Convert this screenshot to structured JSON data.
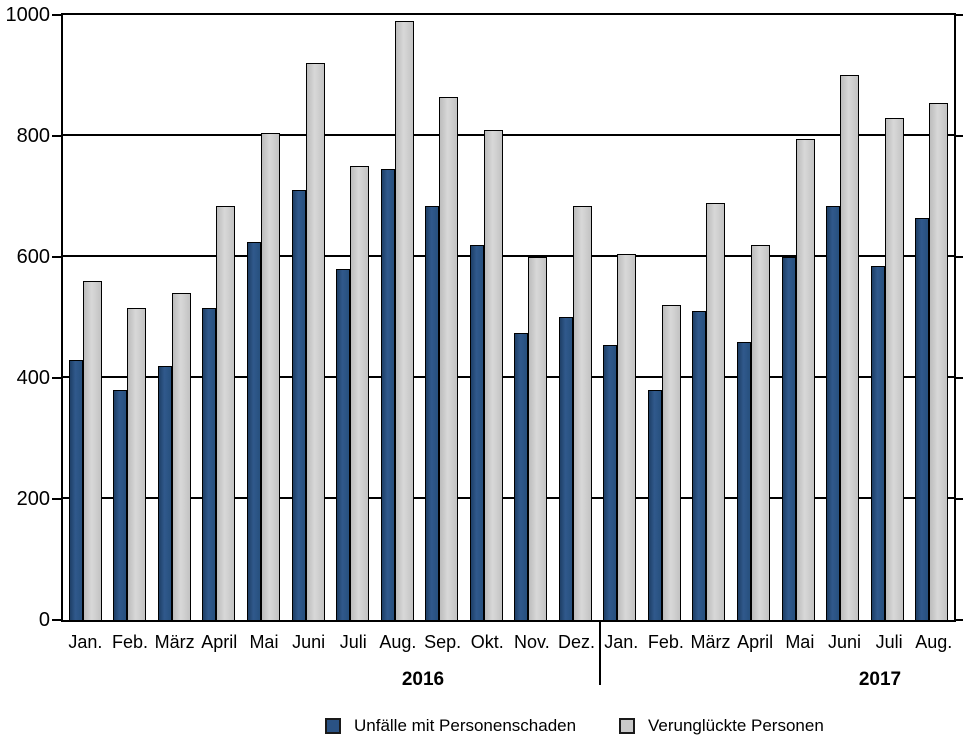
{
  "chart_data": {
    "type": "bar",
    "title": "",
    "xlabel": "",
    "ylabel": "",
    "ylim": [
      0,
      1000
    ],
    "yticks": [
      0,
      200,
      400,
      600,
      800,
      1000
    ],
    "grid": "horizontal",
    "legend_position": "bottom",
    "categories": [
      "Jan.",
      "Feb.",
      "März",
      "April",
      "Mai",
      "Juni",
      "Juli",
      "Aug.",
      "Sep.",
      "Okt.",
      "Nov.",
      "Dez.",
      "Jan.",
      "Feb.",
      "März",
      "April",
      "Mai",
      "Juni",
      "Juli",
      "Aug."
    ],
    "year_groups": [
      {
        "label": "2016",
        "span": 12
      },
      {
        "label": "2017",
        "span": 8
      }
    ],
    "series": [
      {
        "name": "Unfälle mit Personenschaden",
        "color": "#2A5284",
        "values": [
          430,
          380,
          420,
          515,
          625,
          710,
          580,
          745,
          685,
          620,
          475,
          500,
          455,
          380,
          510,
          460,
          600,
          685,
          585,
          665
        ]
      },
      {
        "name": "Verunglückte Personen",
        "color": "#C9C9C9",
        "values": [
          560,
          515,
          540,
          685,
          805,
          920,
          750,
          990,
          865,
          810,
          600,
          685,
          605,
          520,
          690,
          620,
          795,
          900,
          830,
          855
        ]
      }
    ]
  }
}
